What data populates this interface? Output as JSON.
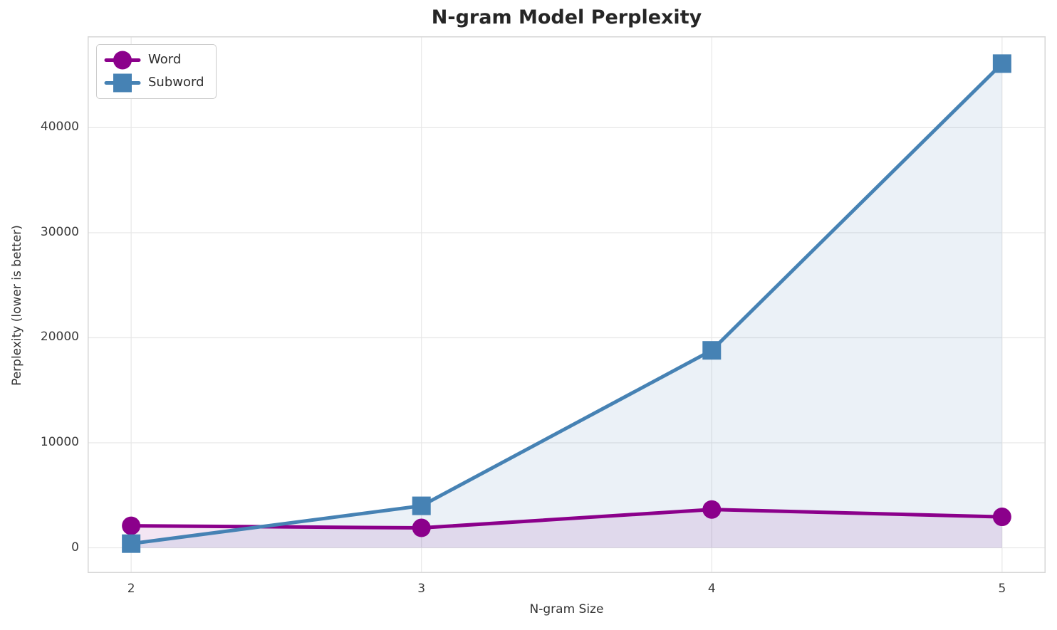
{
  "title": "N-gram Model Perplexity",
  "chart_data": {
    "type": "line",
    "title": "N-gram Model Perplexity",
    "xlabel": "N-gram Size",
    "ylabel": "Perplexity (lower is better)",
    "x": [
      2,
      3,
      4,
      5
    ],
    "xticks": [
      2,
      3,
      4,
      5
    ],
    "yticks": [
      0,
      10000,
      20000,
      30000,
      40000
    ],
    "xlim": [
      1.85,
      5.15
    ],
    "ylim": [
      -2400,
      48700
    ],
    "grid": true,
    "legend_position": "upper-left",
    "series": [
      {
        "name": "Word",
        "marker": "circle",
        "color": "#8B008B",
        "fill_opacity": 0.1,
        "values": [
          2100,
          1900,
          3650,
          2950
        ]
      },
      {
        "name": "Subword",
        "marker": "square",
        "color": "#4682B4",
        "fill_opacity": 0.11,
        "values": [
          400,
          4000,
          18800,
          46100
        ]
      }
    ],
    "style": {
      "grid_color": "#e7e7e7",
      "spine_color": "#d6d6d6",
      "text_color": "#3b3b3b",
      "line_width": 5,
      "marker_size": 26
    }
  }
}
